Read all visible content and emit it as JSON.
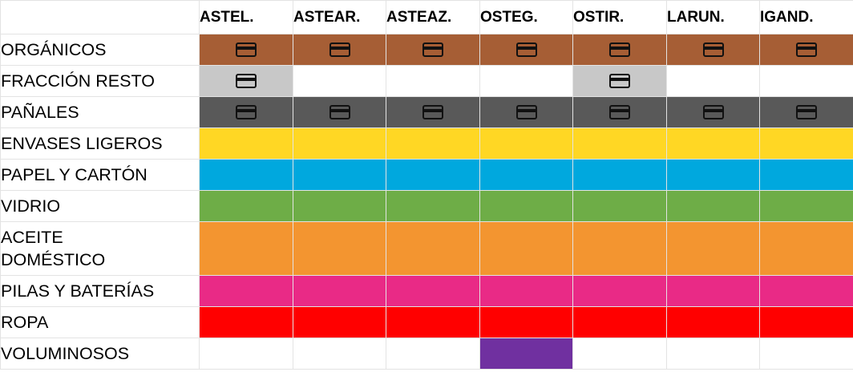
{
  "days": [
    "ASTEL.",
    "ASTEAR.",
    "ASTEAZ.",
    "OSTEG.",
    "OSTIR.",
    "LARUN.",
    "IGAND."
  ],
  "rows": [
    {
      "label": "ORGÁNICOS",
      "color": "#A65E35",
      "active": [
        1,
        1,
        1,
        1,
        1,
        1,
        1
      ],
      "card": [
        1,
        1,
        1,
        1,
        1,
        1,
        1
      ],
      "height": 39
    },
    {
      "label": "FRACCIÓN RESTO",
      "color": "#C8C8C8",
      "active": [
        1,
        0,
        0,
        0,
        1,
        0,
        0
      ],
      "card": [
        1,
        0,
        0,
        0,
        1,
        0,
        0
      ],
      "height": 39
    },
    {
      "label": "PAÑALES",
      "color": "#595959",
      "active": [
        1,
        1,
        1,
        1,
        1,
        1,
        1
      ],
      "card": [
        1,
        1,
        1,
        1,
        1,
        1,
        1
      ],
      "height": 39
    },
    {
      "label": "ENVASES LIGEROS",
      "color": "#FFD724",
      "active": [
        1,
        1,
        1,
        1,
        1,
        1,
        1
      ],
      "card": [
        0,
        0,
        0,
        0,
        0,
        0,
        0
      ],
      "height": 39
    },
    {
      "label": "PAPEL Y CARTÓN",
      "color": "#00A8DE",
      "active": [
        1,
        1,
        1,
        1,
        1,
        1,
        1
      ],
      "card": [
        0,
        0,
        0,
        0,
        0,
        0,
        0
      ],
      "height": 39
    },
    {
      "label": "VIDRIO",
      "color": "#6EAD47",
      "active": [
        1,
        1,
        1,
        1,
        1,
        1,
        1
      ],
      "card": [
        0,
        0,
        0,
        0,
        0,
        0,
        0
      ],
      "height": 39
    },
    {
      "label": "ACEITE\nDOMÉSTICO",
      "color": "#F39530",
      "active": [
        1,
        1,
        1,
        1,
        1,
        1,
        1
      ],
      "card": [
        0,
        0,
        0,
        0,
        0,
        0,
        0
      ],
      "height": 67
    },
    {
      "label": "PILAS Y BATERÍAS",
      "color": "#E92A86",
      "active": [
        1,
        1,
        1,
        1,
        1,
        1,
        1
      ],
      "card": [
        0,
        0,
        0,
        0,
        0,
        0,
        0
      ],
      "height": 39
    },
    {
      "label": "ROPA",
      "color": "#FF0000",
      "active": [
        1,
        1,
        1,
        1,
        1,
        1,
        1
      ],
      "card": [
        0,
        0,
        0,
        0,
        0,
        0,
        0
      ],
      "height": 39
    },
    {
      "label": "VOLUMINOSOS",
      "color": "#7030A0",
      "active": [
        0,
        0,
        0,
        1,
        0,
        0,
        0
      ],
      "card": [
        0,
        0,
        0,
        0,
        0,
        0,
        0
      ],
      "height": 39
    }
  ],
  "icon": "card-icon"
}
